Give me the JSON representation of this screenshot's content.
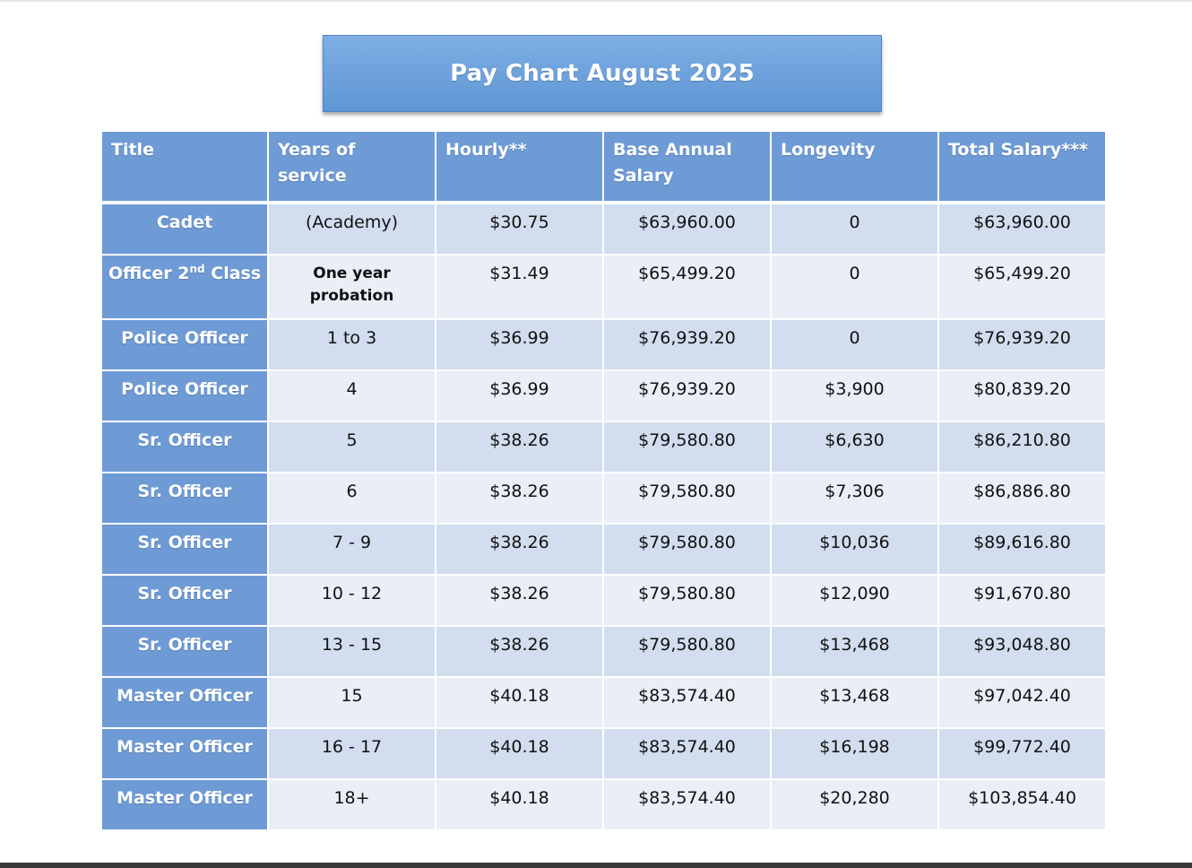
{
  "title": "Pay Chart August 2025",
  "columns": [
    "Title",
    "Years of service",
    "Hourly**",
    "Base Annual Salary",
    "Longevity",
    "Total Salary***"
  ],
  "rows": [
    {
      "title": "Cadet",
      "years": "(Academy)",
      "hourly": "$30.75",
      "base": "$63,960.00",
      "longevity": "0",
      "total": "$63,960.00"
    },
    {
      "title": "Officer 2",
      "title_sup": "nd",
      "title_after": " Class",
      "years": "One year probation",
      "hourly": "$31.49",
      "base": "$65,499.20",
      "longevity": "0",
      "total": "$65,499.20"
    },
    {
      "title": "Police Officer",
      "years": "1 to 3",
      "hourly": "$36.99",
      "base": "$76,939.20",
      "longevity": "0",
      "total": "$76,939.20"
    },
    {
      "title": "Police Officer",
      "years": "4",
      "hourly": "$36.99",
      "base": "$76,939.20",
      "longevity": "$3,900",
      "total": "$80,839.20"
    },
    {
      "title": "Sr. Officer",
      "years": "5",
      "hourly": "$38.26",
      "base": "$79,580.80",
      "longevity": "$6,630",
      "total": "$86,210.80"
    },
    {
      "title": "Sr. Officer",
      "years": "6",
      "hourly": "$38.26",
      "base": "$79,580.80",
      "longevity": "$7,306",
      "total": "$86,886.80"
    },
    {
      "title": "Sr. Officer",
      "years": "7 - 9",
      "hourly": "$38.26",
      "base": "$79,580.80",
      "longevity": "$10,036",
      "total": "$89,616.80"
    },
    {
      "title": "Sr. Officer",
      "years": "10 - 12",
      "hourly": "$38.26",
      "base": "$79,580.80",
      "longevity": "$12,090",
      "total": "$91,670.80"
    },
    {
      "title": "Sr. Officer",
      "years": "13 - 15",
      "hourly": "$38.26",
      "base": "$79,580.80",
      "longevity": "$13,468",
      "total": "$93,048.80"
    },
    {
      "title": "Master Officer",
      "years": "15",
      "hourly": "$40.18",
      "base": "$83,574.40",
      "longevity": "$13,468",
      "total": "$97,042.40"
    },
    {
      "title": "Master Officer",
      "years": "16 - 17",
      "hourly": "$40.18",
      "base": "$83,574.40",
      "longevity": "$16,198",
      "total": "$99,772.40"
    },
    {
      "title": "Master Officer",
      "years": "18+",
      "hourly": "$40.18",
      "base": "$83,574.40",
      "longevity": "$20,280",
      "total": "$103,854.40"
    }
  ],
  "colors": {
    "header_blue": "#6e9bd6",
    "row_dark": "#d2ddef",
    "row_light": "#e9eef7"
  }
}
